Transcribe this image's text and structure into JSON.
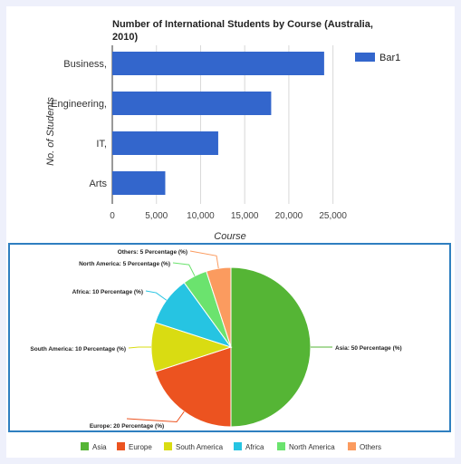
{
  "chart_data": [
    {
      "type": "bar",
      "orientation": "horizontal",
      "title": "Number of International Students by Course (Australia, 2010)",
      "title_lines": [
        "Number of International Students by Course (Australia,",
        "2010)"
      ],
      "xlabel": "Course",
      "ylabel": "No. of Students",
      "categories": [
        "Business,",
        "Engineering,",
        "IT,",
        "Arts"
      ],
      "series": [
        {
          "name": "Bar1",
          "values": [
            24000,
            18000,
            12000,
            6000
          ],
          "color": "#3366cc"
        }
      ],
      "xlim": [
        0,
        27500
      ],
      "xticks": [
        0,
        5000,
        10000,
        15000,
        20000,
        25000
      ],
      "xtick_labels": [
        "0",
        "5,000",
        "10,000",
        "15,000",
        "20,000",
        "25,000"
      ],
      "grid": true,
      "legend_position": "top-right"
    },
    {
      "type": "pie",
      "slices": [
        {
          "label": "Asia",
          "value": 50,
          "color": "#55b535",
          "annotation": "Asia: 50 Percentage (%)"
        },
        {
          "label": "Europe",
          "value": 20,
          "color": "#ec5320",
          "annotation": "Europe: 20 Percentage (%)"
        },
        {
          "label": "South America",
          "value": 10,
          "color": "#d9dc12",
          "annotation": "South America: 10 Percentage (%)"
        },
        {
          "label": "Africa",
          "value": 10,
          "color": "#26c4e2",
          "annotation": "Africa: 10 Percentage (%)"
        },
        {
          "label": "North America",
          "value": 5,
          "color": "#6be36e",
          "annotation": "North America: 5 Percentage (%)"
        },
        {
          "label": "Others",
          "value": 5,
          "color": "#fb9b5f",
          "annotation": "Others: 5 Percentage (%)"
        }
      ],
      "legend_position": "bottom"
    }
  ]
}
